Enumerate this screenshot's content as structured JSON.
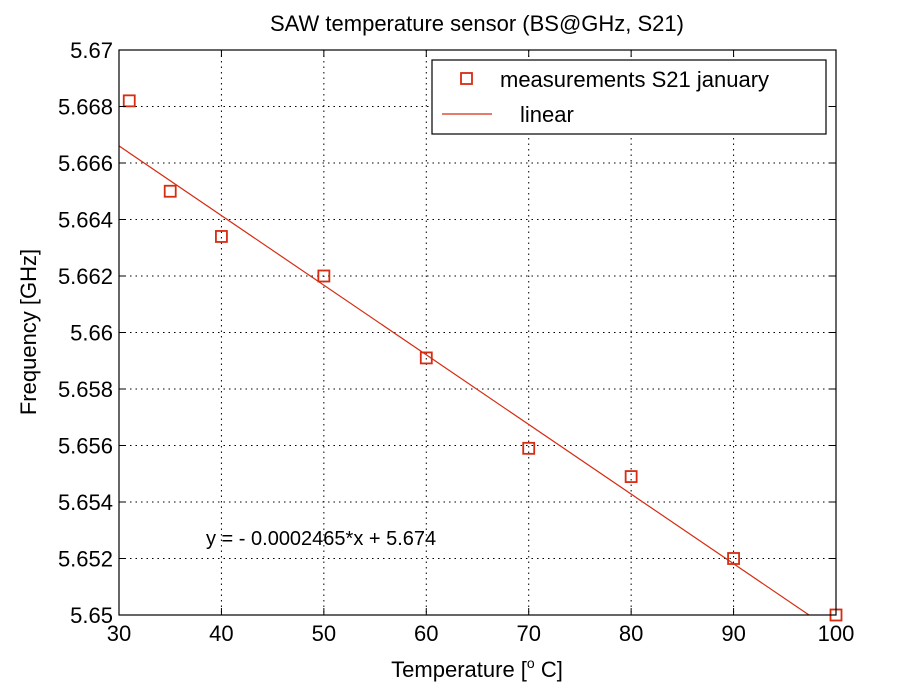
{
  "chart_data": {
    "type": "scatter",
    "title": "SAW temperature sensor (BS@GHz, S21)",
    "xlabel_main": "Temperature [",
    "xlabel_sup": "o",
    "xlabel_tail": " C]",
    "ylabel": "Frequency [GHz]",
    "xlim": [
      30,
      100
    ],
    "ylim": [
      5.65,
      5.67
    ],
    "xticks": [
      30,
      40,
      50,
      60,
      70,
      80,
      90,
      100
    ],
    "yticks": [
      5.65,
      5.652,
      5.654,
      5.656,
      5.658,
      5.66,
      5.662,
      5.664,
      5.666,
      5.668,
      5.67
    ],
    "ytick_labels": [
      "5.65",
      "5.652",
      "5.654",
      "5.656",
      "5.658",
      "5.66",
      "5.662",
      "5.664",
      "5.666",
      "5.668",
      "5.67"
    ],
    "grid": true,
    "legend_position": "top-right",
    "series": [
      {
        "name": "measurements S21 january",
        "marker": "square",
        "color": "#d62c12",
        "x": [
          31,
          35,
          40,
          50,
          60,
          70,
          80,
          90,
          100
        ],
        "y": [
          5.6682,
          5.665,
          5.6634,
          5.662,
          5.6591,
          5.6559,
          5.6549,
          5.652,
          5.65
        ]
      },
      {
        "name": "linear",
        "style": "line",
        "color": "#d62c12",
        "slope": -0.0002465,
        "intercept": 5.674
      }
    ],
    "annotation": "y = - 0.0002465*x + 5.674"
  }
}
